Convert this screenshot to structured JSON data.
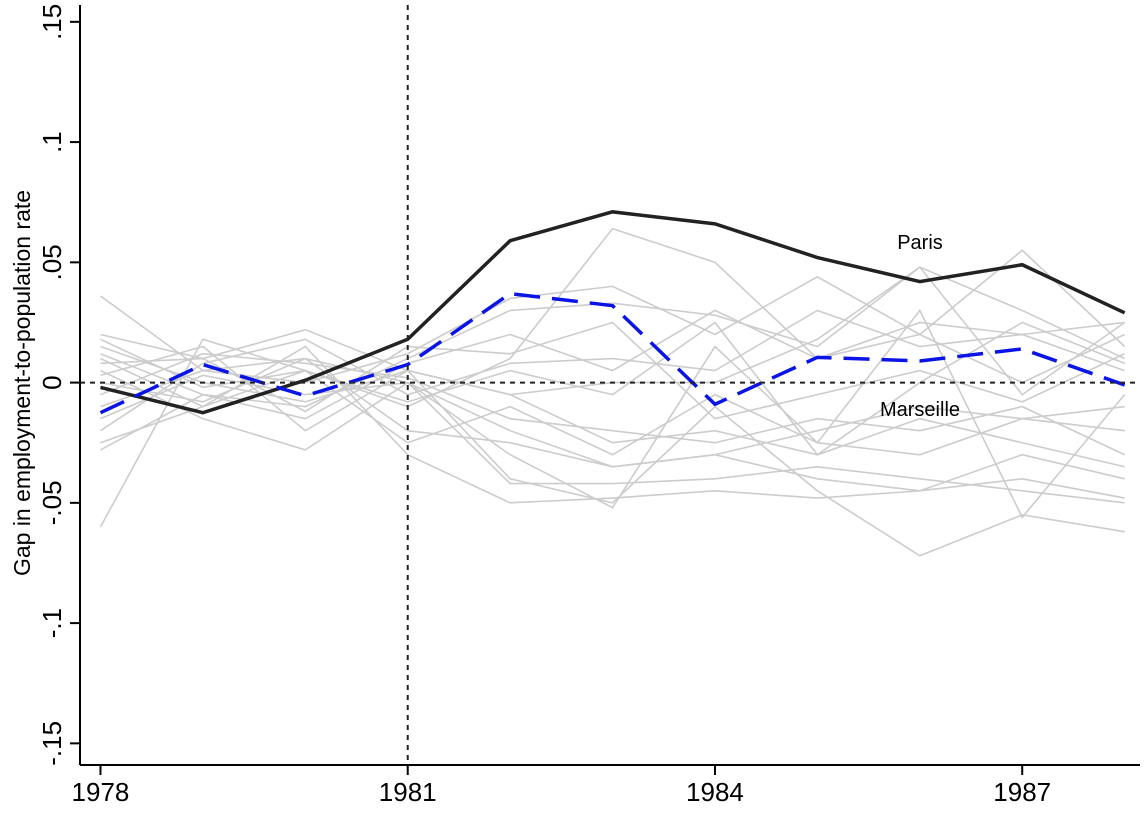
{
  "chart_data": {
    "type": "line",
    "y_label": "Gap in employment-to-population rate",
    "x": [
      1978,
      1979,
      1980,
      1981,
      1982,
      1983,
      1984,
      1985,
      1986,
      1987,
      1988
    ],
    "xlim": [
      1977.8,
      1988.15
    ],
    "xticks": [
      1978,
      1981,
      1984,
      1987
    ],
    "ylim": [
      -0.159,
      0.157
    ],
    "yticks": [
      {
        "value": -0.15,
        "label": "-.15"
      },
      {
        "value": -0.1,
        "label": "-.1"
      },
      {
        "value": -0.05,
        "label": "-.05"
      },
      0,
      {
        "value": 0.05,
        "label": ".05"
      },
      {
        "value": 0.1,
        "label": ".1"
      },
      {
        "value": 0.15,
        "label": ".15"
      }
    ],
    "vline": 1981,
    "hline": 0,
    "series": [
      {
        "color": "#cccccc",
        "values": [
          0.036,
          0.005,
          0.01,
          0.0,
          -0.02,
          -0.035,
          -0.03,
          -0.04,
          -0.045,
          -0.04,
          -0.048
        ]
      },
      {
        "color": "#cccccc",
        "values": [
          -0.06,
          0.018,
          0.005,
          -0.01,
          0.01,
          0.064,
          0.05,
          0.01,
          0.025,
          0.02,
          0.025
        ]
      },
      {
        "color": "#cccccc",
        "values": [
          0.02,
          0.01,
          0.022,
          0.005,
          -0.005,
          -0.025,
          -0.02,
          -0.03,
          -0.015,
          -0.025,
          -0.035
        ]
      },
      {
        "color": "#cccccc",
        "values": [
          -0.028,
          -0.005,
          -0.01,
          0.01,
          0.03,
          0.033,
          0.028,
          0.015,
          0.048,
          0.03,
          0.01
        ]
      },
      {
        "color": "#cccccc",
        "values": [
          0.015,
          0.0,
          -0.008,
          0.005,
          -0.04,
          -0.05,
          -0.01,
          -0.045,
          -0.072,
          -0.055,
          -0.062
        ]
      },
      {
        "color": "#cccccc",
        "values": [
          0.01,
          -0.01,
          0.015,
          -0.03,
          -0.05,
          -0.048,
          -0.045,
          -0.048,
          -0.045,
          -0.03,
          -0.04
        ]
      },
      {
        "color": "#cccccc",
        "values": [
          -0.01,
          0.005,
          0.0,
          0.012,
          0.035,
          0.04,
          0.02,
          0.044,
          0.02,
          0.055,
          0.015
        ]
      },
      {
        "color": "#cccccc",
        "values": [
          0.005,
          -0.015,
          -0.028,
          0.0,
          -0.03,
          -0.052,
          0.015,
          -0.025,
          0.03,
          -0.056,
          -0.005
        ]
      },
      {
        "color": "#cccccc",
        "values": [
          -0.02,
          0.008,
          0.018,
          -0.005,
          0.008,
          0.01,
          0.005,
          0.03,
          0.015,
          0.02,
          0.005
        ]
      },
      {
        "color": "#cccccc",
        "values": [
          0.0,
          -0.008,
          0.01,
          -0.02,
          -0.025,
          -0.035,
          -0.03,
          -0.02,
          -0.01,
          -0.015,
          -0.02
        ]
      },
      {
        "color": "#cccccc",
        "values": [
          0.008,
          0.01,
          -0.012,
          0.015,
          0.012,
          0.025,
          -0.015,
          -0.005,
          0.005,
          -0.008,
          0.012
        ]
      },
      {
        "color": "#cccccc",
        "values": [
          -0.015,
          0.003,
          -0.005,
          0.0,
          -0.042,
          -0.042,
          -0.04,
          -0.035,
          -0.04,
          -0.045,
          -0.05
        ]
      },
      {
        "color": "#cccccc",
        "values": [
          0.018,
          -0.002,
          0.005,
          -0.008,
          0.005,
          -0.005,
          0.025,
          -0.03,
          0.0,
          0.025,
          0.008
        ]
      },
      {
        "color": "#cccccc",
        "values": [
          -0.005,
          0.012,
          0.008,
          0.002,
          -0.015,
          -0.02,
          -0.025,
          -0.015,
          -0.02,
          -0.01,
          -0.03
        ]
      },
      {
        "color": "#cccccc",
        "values": [
          0.012,
          -0.005,
          -0.015,
          0.008,
          0.02,
          0.005,
          0.03,
          0.01,
          0.02,
          0.0,
          0.02
        ]
      },
      {
        "color": "#cccccc",
        "values": [
          -0.025,
          -0.01,
          0.005,
          -0.025,
          -0.01,
          -0.03,
          -0.005,
          -0.025,
          -0.03,
          -0.015,
          -0.01
        ]
      },
      {
        "color": "#cccccc",
        "values": [
          0.003,
          0.015,
          -0.02,
          0.005,
          -0.005,
          0.0,
          0.0,
          0.018,
          0.048,
          -0.005,
          0.025
        ]
      },
      {
        "name": "Paris",
        "color": "#222222",
        "values": [
          -0.002,
          -0.0125,
          0.001,
          0.018,
          0.059,
          0.071,
          0.066,
          0.052,
          0.042,
          0.049,
          0.029
        ]
      },
      {
        "name": "Marseille",
        "color": "#0a14e6",
        "dashed": true,
        "values": [
          -0.0125,
          0.0075,
          -0.0055,
          0.0075,
          0.037,
          0.032,
          -0.009,
          0.0105,
          0.009,
          0.014,
          -0.001
        ]
      }
    ]
  }
}
